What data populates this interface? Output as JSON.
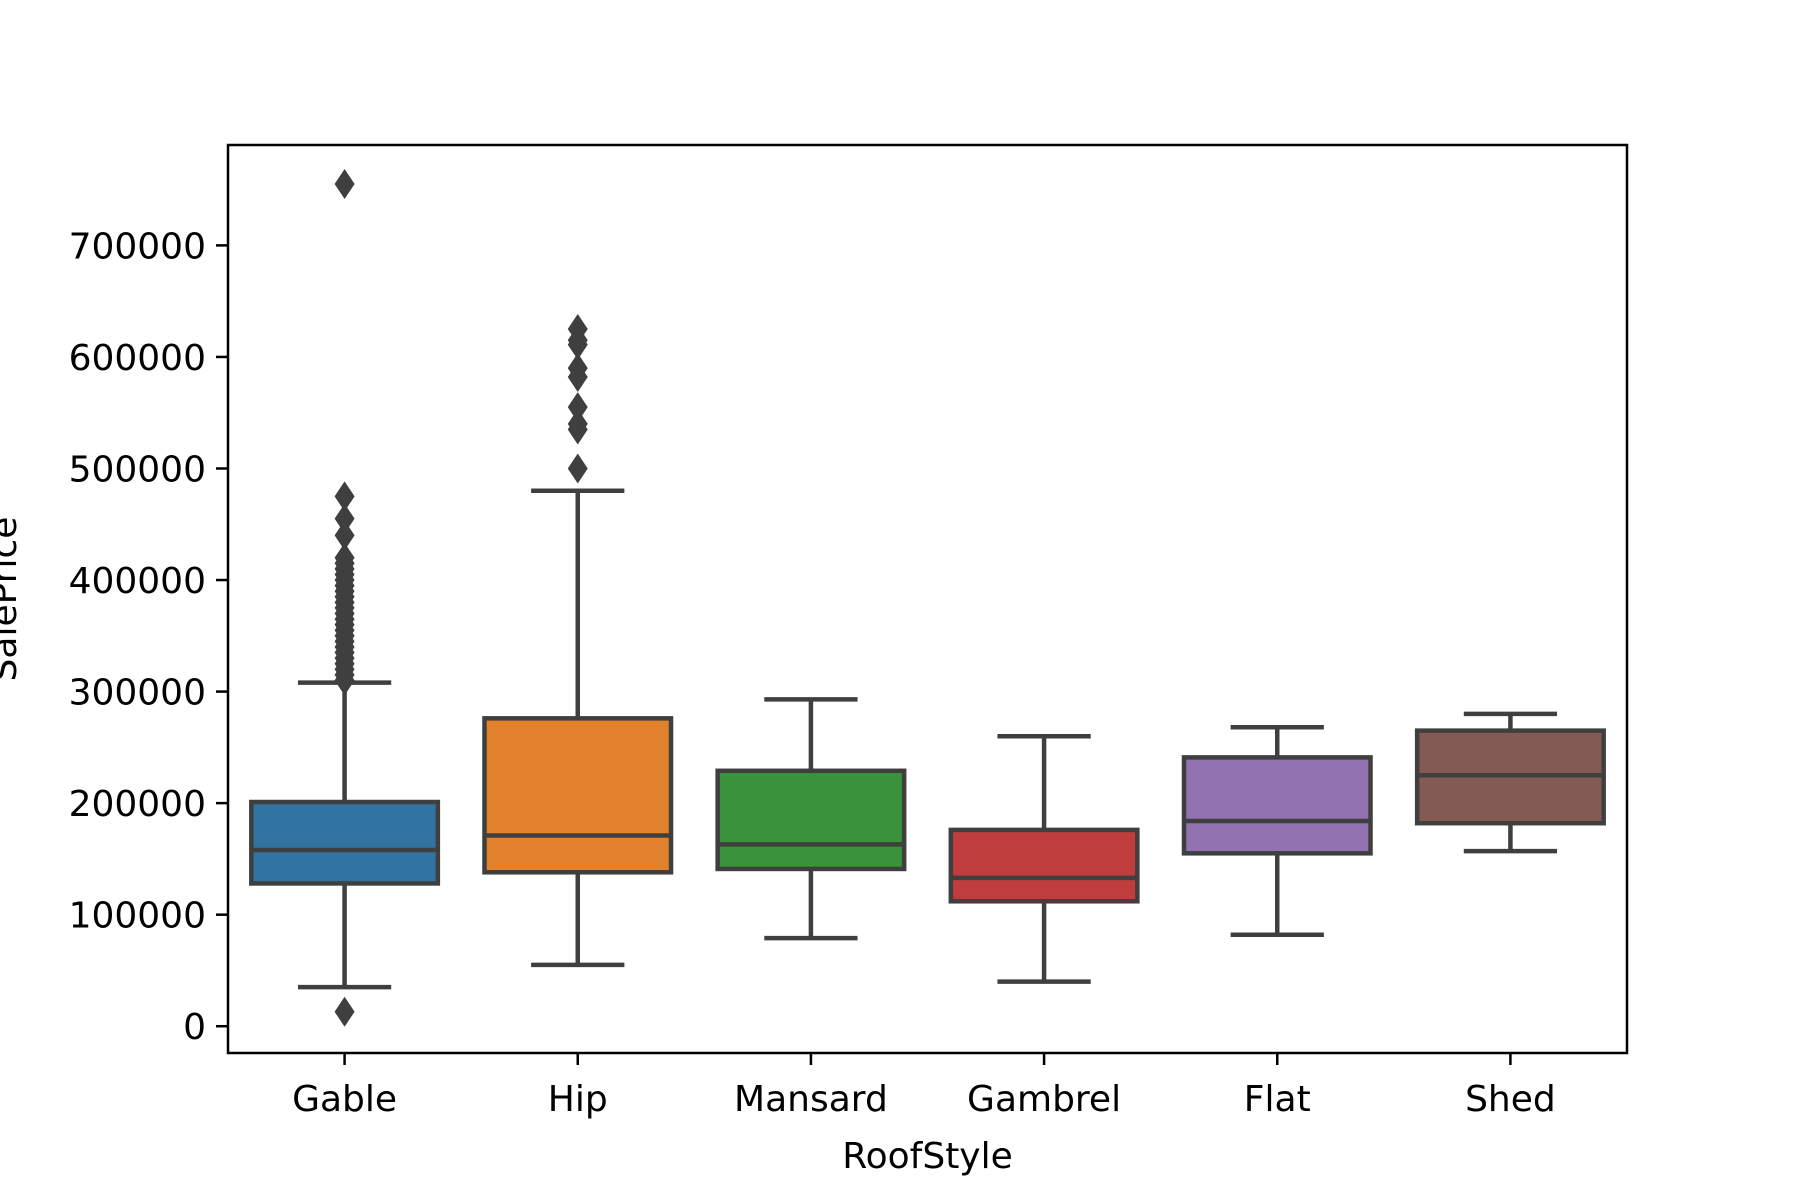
{
  "chart_data": {
    "type": "box",
    "title": "",
    "xlabel": "RoofStyle",
    "ylabel": "SalePrice",
    "ylim": [
      -24000,
      790000
    ],
    "yticks": [
      0,
      100000,
      200000,
      300000,
      400000,
      500000,
      600000,
      700000
    ],
    "ytick_labels": [
      "0",
      "100000",
      "200000",
      "300000",
      "400000",
      "500000",
      "600000",
      "700000"
    ],
    "grid": false,
    "legend": "none",
    "edge_color": "#3f3f3f",
    "categories": [
      "Gable",
      "Hip",
      "Mansard",
      "Gambrel",
      "Flat",
      "Shed"
    ],
    "series": [
      {
        "category": "Gable",
        "color": "#3274a1",
        "whisker_low": 35000,
        "q1": 128000,
        "median": 158000,
        "q3": 201000,
        "whisker_high": 308000,
        "outliers": [
          13000,
          310000,
          315000,
          320000,
          325000,
          330000,
          335000,
          340000,
          345000,
          350000,
          355000,
          360000,
          365000,
          370000,
          375000,
          380000,
          385000,
          390000,
          395000,
          400000,
          405000,
          410000,
          415000,
          420000,
          440000,
          455000,
          475000,
          755000
        ]
      },
      {
        "category": "Hip",
        "color": "#e1812c",
        "whisker_low": 55000,
        "q1": 138000,
        "median": 171000,
        "q3": 276000,
        "whisker_high": 480000,
        "outliers": [
          500000,
          535000,
          540000,
          555000,
          582000,
          590000,
          611000,
          615000,
          625000
        ]
      },
      {
        "category": "Mansard",
        "color": "#3a923a",
        "whisker_low": 79000,
        "q1": 141000,
        "median": 163000,
        "q3": 229000,
        "whisker_high": 293000,
        "outliers": []
      },
      {
        "category": "Gambrel",
        "color": "#c03d3e",
        "whisker_low": 40000,
        "q1": 112000,
        "median": 133000,
        "q3": 176000,
        "whisker_high": 260000,
        "outliers": []
      },
      {
        "category": "Flat",
        "color": "#9372b2",
        "whisker_low": 82000,
        "q1": 155000,
        "median": 184000,
        "q3": 241000,
        "whisker_high": 268000,
        "outliers": []
      },
      {
        "category": "Shed",
        "color": "#845b53",
        "whisker_low": 157000,
        "q1": 182000,
        "median": 225000,
        "q3": 265000,
        "whisker_high": 280000,
        "outliers": []
      }
    ]
  }
}
